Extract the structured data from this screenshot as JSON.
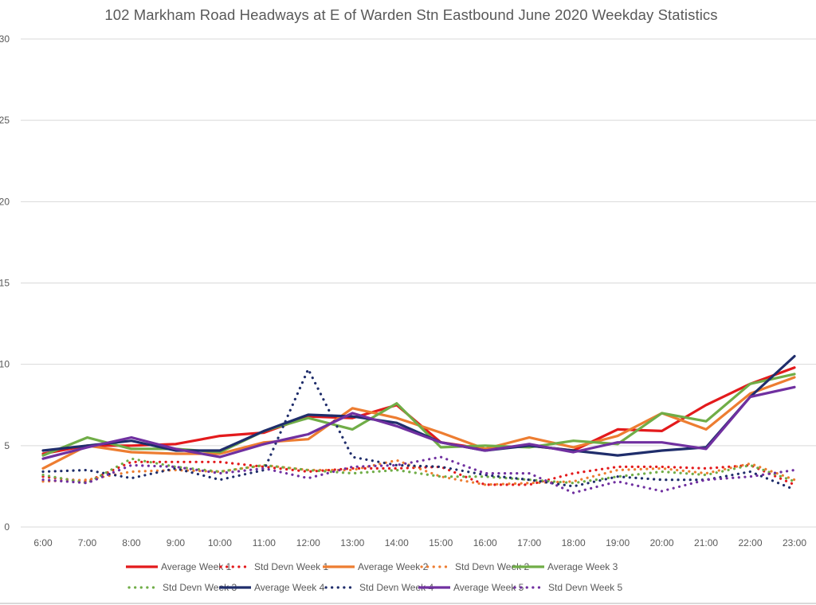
{
  "chart_data": {
    "type": "line",
    "title": "102 Markham Road Headways at E of Warden Stn Eastbound June 2020 Weekday Statistics",
    "xlabel": "",
    "ylabel": "",
    "ylim": [
      0,
      30
    ],
    "yticks": [
      0,
      5,
      10,
      15,
      20,
      25,
      30
    ],
    "grid": true,
    "legend_position": "bottom",
    "categories": [
      "6:00",
      "7:00",
      "8:00",
      "9:00",
      "10:00",
      "11:00",
      "12:00",
      "13:00",
      "14:00",
      "15:00",
      "16:00",
      "17:00",
      "18:00",
      "19:00",
      "20:00",
      "21:00",
      "22:00",
      "23:00"
    ],
    "series": [
      {
        "name": "Average Week 1",
        "color": "#e31a1c",
        "style": "solid",
        "values": [
          4.5,
          5.0,
          5.0,
          5.1,
          5.6,
          5.8,
          6.8,
          6.7,
          7.5,
          5.2,
          4.8,
          5.0,
          4.7,
          6.0,
          5.9,
          7.5,
          8.8,
          9.8
        ]
      },
      {
        "name": "Std Devn Week 1",
        "color": "#e31a1c",
        "style": "dotted",
        "values": [
          3.1,
          2.8,
          4.0,
          4.0,
          4.0,
          3.7,
          3.4,
          3.6,
          3.6,
          3.7,
          2.6,
          2.6,
          3.3,
          3.7,
          3.7,
          3.6,
          3.8,
          2.6
        ]
      },
      {
        "name": "Average Week 2",
        "color": "#ed7d31",
        "style": "solid",
        "values": [
          3.6,
          5.0,
          4.6,
          4.5,
          4.5,
          5.2,
          5.4,
          7.3,
          6.7,
          5.8,
          4.8,
          5.5,
          4.9,
          5.6,
          7.0,
          6.0,
          8.2,
          9.2
        ]
      },
      {
        "name": "Std Devn Week 2",
        "color": "#ed7d31",
        "style": "dotted",
        "values": [
          2.8,
          2.9,
          3.4,
          3.5,
          3.4,
          3.8,
          3.5,
          3.5,
          4.1,
          3.1,
          2.6,
          2.7,
          2.8,
          3.5,
          3.6,
          3.3,
          3.9,
          2.9
        ]
      },
      {
        "name": "Average Week 3",
        "color": "#70ad47",
        "style": "solid",
        "values": [
          4.4,
          5.5,
          4.8,
          4.8,
          4.6,
          5.9,
          6.7,
          6.0,
          7.6,
          4.9,
          5.0,
          4.9,
          5.3,
          5.1,
          7.0,
          6.5,
          8.8,
          9.4
        ]
      },
      {
        "name": "Std Devn Week 3",
        "color": "#70ad47",
        "style": "dotted",
        "values": [
          3.2,
          2.7,
          4.2,
          3.7,
          3.4,
          3.8,
          3.5,
          3.3,
          3.5,
          3.1,
          3.1,
          2.9,
          2.7,
          3.1,
          3.4,
          3.2,
          3.8,
          2.8
        ]
      },
      {
        "name": "Average Week 4",
        "color": "#1f2d6b",
        "style": "solid",
        "values": [
          4.7,
          5.0,
          5.3,
          4.7,
          4.7,
          5.9,
          6.9,
          6.8,
          6.4,
          5.2,
          4.7,
          5.0,
          4.7,
          4.4,
          4.7,
          4.9,
          8.0,
          10.5
        ]
      },
      {
        "name": "Std Devn Week 4",
        "color": "#1f2d6b",
        "style": "dotted",
        "values": [
          3.4,
          3.5,
          3.0,
          3.6,
          2.9,
          3.5,
          9.7,
          4.3,
          3.8,
          3.7,
          3.2,
          2.9,
          2.5,
          3.1,
          2.9,
          2.9,
          3.4,
          2.3
        ]
      },
      {
        "name": "Average Week 5",
        "color": "#7030a0",
        "style": "solid",
        "values": [
          4.2,
          4.9,
          5.5,
          4.8,
          4.3,
          5.1,
          5.7,
          7.0,
          6.2,
          5.2,
          4.7,
          5.1,
          4.6,
          5.2,
          5.2,
          4.8,
          8.0,
          8.6
        ]
      },
      {
        "name": "Std Devn Week 5",
        "color": "#7030a0",
        "style": "dotted",
        "values": [
          2.9,
          2.7,
          3.8,
          3.7,
          3.3,
          3.6,
          3.0,
          3.7,
          3.8,
          4.3,
          3.3,
          3.3,
          2.1,
          2.8,
          2.2,
          2.9,
          3.1,
          3.5
        ]
      }
    ]
  }
}
